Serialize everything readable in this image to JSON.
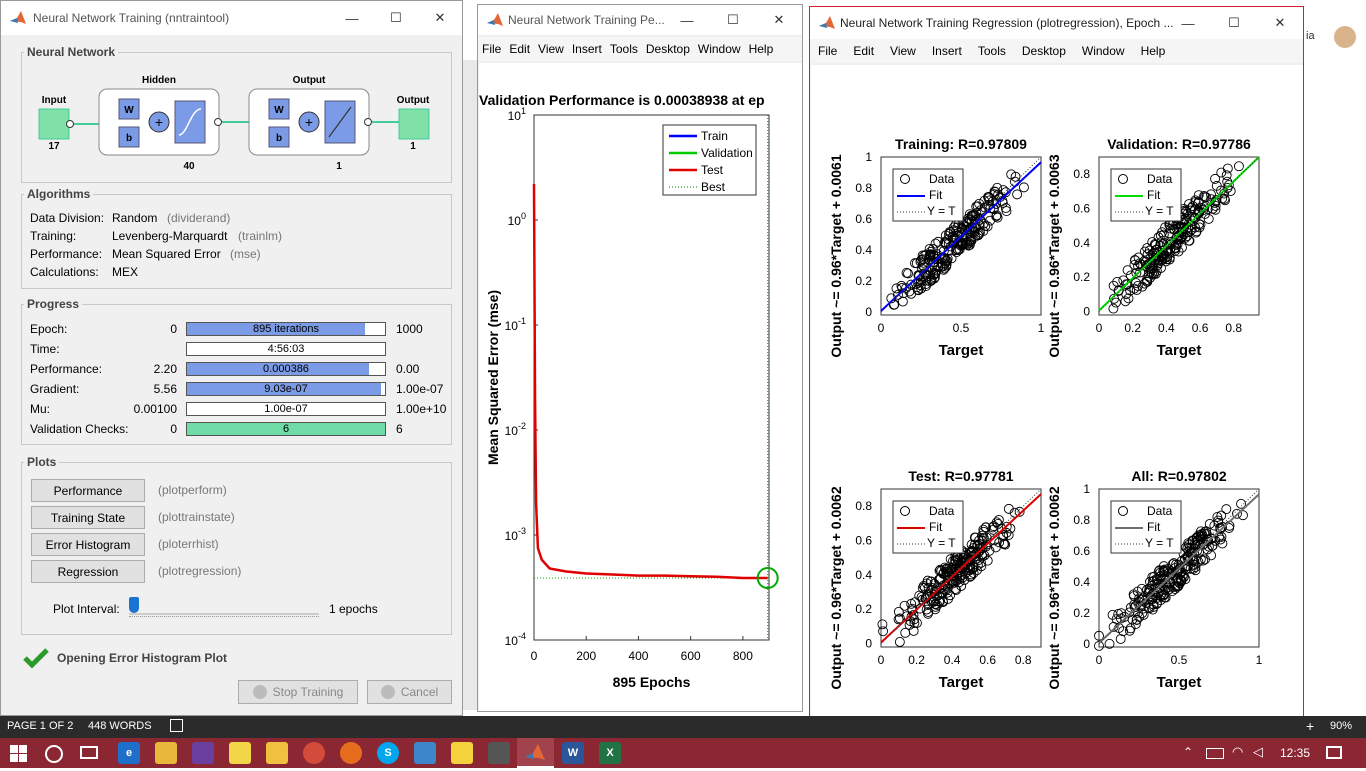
{
  "nntool": {
    "title": "Neural Network Training (nntraintool)",
    "network_group": "Neural Network",
    "diagram": {
      "input_label": "Input",
      "input_size": "17",
      "hidden_label": "Hidden",
      "hidden_size": "40",
      "output_layer_label": "Output",
      "output_layer_size": "1",
      "output_label": "Output",
      "output_size": "1",
      "w": "W",
      "b": "b"
    },
    "algorithms_group": "Algorithms",
    "algorithms": [
      {
        "label": "Data Division:",
        "value": "Random",
        "fn": "(dividerand)"
      },
      {
        "label": "Training:",
        "value": "Levenberg-Marquardt",
        "fn": "(trainlm)"
      },
      {
        "label": "Performance:",
        "value": "Mean Squared Error",
        "fn": "(mse)"
      },
      {
        "label": "Calculations:",
        "value": "MEX",
        "fn": ""
      }
    ],
    "progress_group": "Progress",
    "progress": [
      {
        "label": "Epoch:",
        "start": "0",
        "text": "895 iterations",
        "end": "1000",
        "fill": 0.9,
        "color": "#7b9be6"
      },
      {
        "label": "Time:",
        "start": "",
        "text": "4:56:03",
        "end": "",
        "fill": 0,
        "color": "#7b9be6"
      },
      {
        "label": "Performance:",
        "start": "2.20",
        "text": "0.000386",
        "end": "0.00",
        "fill": 0.92,
        "color": "#7b9be6"
      },
      {
        "label": "Gradient:",
        "start": "5.56",
        "text": "9.03e-07",
        "end": "1.00e-07",
        "fill": 0.98,
        "color": "#7b9be6"
      },
      {
        "label": "Mu:",
        "start": "0.00100",
        "text": "1.00e-07",
        "end": "1.00e+10",
        "fill": 0,
        "color": "#7b9be6"
      },
      {
        "label": "Validation Checks:",
        "start": "0",
        "text": "6",
        "end": "6",
        "fill": 1.0,
        "color": "#6fdca8"
      }
    ],
    "plots_group": "Plots",
    "plots": [
      {
        "label": "Performance",
        "fn": "(plotperform)"
      },
      {
        "label": "Training State",
        "fn": "(plottrainstate)"
      },
      {
        "label": "Error Histogram",
        "fn": "(ploterrhist)"
      },
      {
        "label": "Regression",
        "fn": "(plotregression)"
      }
    ],
    "plot_interval_label": "Plot Interval:",
    "plot_interval_value": "1 epochs",
    "status_text": "Opening Error Histogram Plot",
    "stop_label": "Stop Training",
    "cancel_label": "Cancel"
  },
  "perf": {
    "title": "Neural Network Training Pe...",
    "menus": [
      "File",
      "Edit",
      "View",
      "Insert",
      "Tools",
      "Desktop",
      "Window",
      "Help"
    ],
    "chart_title": "Validation Performance is 0.00038938 at ep",
    "ylabel": "Mean Squared Error  (mse)",
    "xlabel": "895 Epochs",
    "yticks": [
      {
        "base": "10",
        "exp": "1",
        "v": 1
      },
      {
        "base": "10",
        "exp": "0",
        "v": 0
      },
      {
        "base": "10",
        "exp": "-1",
        "v": -1
      },
      {
        "base": "10",
        "exp": "-2",
        "v": -2
      },
      {
        "base": "10",
        "exp": "-3",
        "v": -3
      },
      {
        "base": "10",
        "exp": "-4",
        "v": -4
      }
    ],
    "xticks": [
      "0",
      "200",
      "400",
      "600",
      "800"
    ],
    "legend": [
      "Train",
      "Validation",
      "Test",
      "Best"
    ]
  },
  "reg": {
    "title": "Neural Network Training Regression (plotregression), Epoch ...",
    "menus": [
      "File",
      "Edit",
      "View",
      "Insert",
      "Tools",
      "Desktop",
      "Window",
      "Help"
    ],
    "xlabel": "Target",
    "legend": [
      "Data",
      "Fit",
      "Y = T"
    ],
    "plots": [
      {
        "title": "Training: R=0.97809",
        "ylabel": "Output ~= 0.96*Target + 0.0061",
        "xticks": [
          "0",
          "0.5",
          "1"
        ],
        "yticks": [
          "0",
          "0.2",
          "0.4",
          "0.6",
          "0.8",
          "1"
        ],
        "fitcolor": "#0000ff"
      },
      {
        "title": "Validation: R=0.97786",
        "ylabel": "Output ~= 0.96*Target + 0.0063",
        "xticks": [
          "0",
          "0.2",
          "0.4",
          "0.6",
          "0.8"
        ],
        "yticks": [
          "0",
          "0.2",
          "0.4",
          "0.6",
          "0.8"
        ],
        "fitcolor": "#00dd00"
      },
      {
        "title": "Test: R=0.97781",
        "ylabel": "Output ~= 0.96*Target + 0.0062",
        "xticks": [
          "0",
          "0.2",
          "0.4",
          "0.6",
          "0.8"
        ],
        "yticks": [
          "0",
          "0.2",
          "0.4",
          "0.6",
          "0.8"
        ],
        "fitcolor": "#e00000"
      },
      {
        "title": "All: R=0.97802",
        "ylabel": "Output ~= 0.96*Target + 0.0062",
        "xticks": [
          "0",
          "0.5",
          "1"
        ],
        "yticks": [
          "0",
          "0.2",
          "0.4",
          "0.6",
          "0.8",
          "1"
        ],
        "fitcolor": "#707070"
      }
    ]
  },
  "word_status": {
    "page": "PAGE 1 OF 2",
    "words": "448 WORDS",
    "zoom": "90%"
  },
  "word_bg_text": {
    "right_top": "ia"
  },
  "taskbar": {
    "time": "12:35"
  },
  "chart_data": [
    {
      "type": "line",
      "title": "Validation Performance is 0.00038938 at ep",
      "xlabel": "895 Epochs",
      "ylabel": "Mean Squared Error  (mse)",
      "yscale": "log",
      "xlim": [
        0,
        900
      ],
      "ylim": [
        0.0001,
        10
      ],
      "series": [
        {
          "name": "Test",
          "x": [
            0,
            4,
            8,
            15,
            30,
            60,
            120,
            200,
            300,
            400,
            500,
            600,
            700,
            800,
            895
          ],
          "y": [
            2.2,
            0.02,
            0.002,
            0.00075,
            0.00058,
            0.00048,
            0.00045,
            0.00043,
            0.00042,
            0.00041,
            0.00041,
            0.000405,
            0.0004,
            0.00039,
            0.00039
          ]
        }
      ],
      "best_epoch": 895,
      "best_value": 0.00038938,
      "legend": [
        "Train",
        "Validation",
        "Test",
        "Best"
      ]
    }
  ]
}
